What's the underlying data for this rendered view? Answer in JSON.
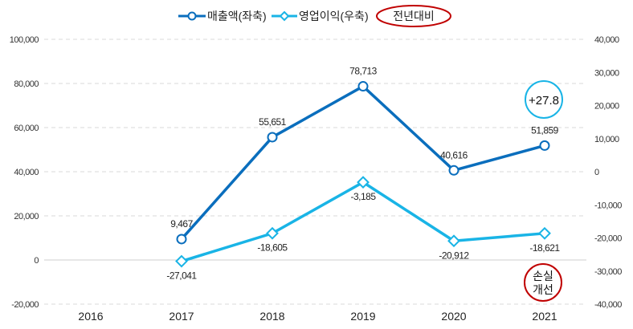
{
  "chart_data": {
    "type": "line",
    "categories": [
      "2016",
      "2017",
      "2018",
      "2019",
      "2020",
      "2021"
    ],
    "series": [
      {
        "name": "매출액(좌축)",
        "axis": "left",
        "color": "#0a6ebd",
        "marker": "circle",
        "values": [
          null,
          9467,
          55651,
          78713,
          40616,
          51859
        ],
        "labels": [
          "",
          "9,467",
          "55,651",
          "78,713",
          "40,616",
          "51,859"
        ]
      },
      {
        "name": "영업이익(우축)",
        "axis": "right",
        "color": "#19b4e6",
        "marker": "diamond",
        "values": [
          null,
          -27041,
          -18605,
          -3185,
          -20912,
          -18621
        ],
        "labels": [
          "",
          "-27,041",
          "-18,605",
          "-3,185",
          "-20,912",
          "-18,621"
        ]
      }
    ],
    "left_axis": {
      "ylim": [
        -20000,
        100000
      ],
      "ticks": [
        -20000,
        0,
        20000,
        40000,
        60000,
        80000,
        100000
      ],
      "tick_labels": [
        "-20,000",
        "0",
        "20,000",
        "40,000",
        "60,000",
        "80,000",
        "100,000"
      ]
    },
    "right_axis": {
      "ylim": [
        -40000,
        40000
      ],
      "ticks": [
        -40000,
        -30000,
        -20000,
        -10000,
        0,
        10000,
        20000,
        30000,
        40000
      ],
      "tick_labels": [
        "-40,000",
        "-30,000",
        "-20,000",
        "-10,000",
        "0",
        "10,000",
        "20,000",
        "30,000",
        "40,000"
      ]
    },
    "grid": true,
    "legend_placement": "top",
    "legend_extra": {
      "label": "전년대비",
      "outline_color": "#c00000"
    },
    "annotations": [
      {
        "text": "+27.8",
        "category": "2021",
        "outline_color": "#19b4e6"
      },
      {
        "line1": "손실",
        "line2": "개선",
        "category": "2021",
        "outline_color": "#c00000"
      }
    ]
  }
}
